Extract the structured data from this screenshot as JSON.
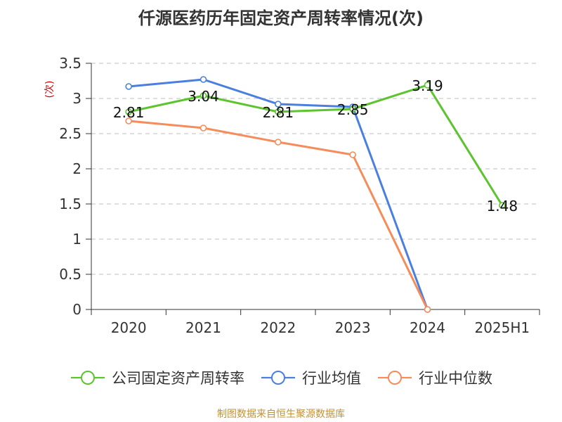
{
  "chart_data": {
    "type": "line",
    "title": "仟源医药历年固定资产周转率情况(次)",
    "ylabel": "(次)",
    "xlabel": "",
    "categories": [
      "2020",
      "2021",
      "2022",
      "2023",
      "2024",
      "2025H1"
    ],
    "ylim": [
      0,
      3.5
    ],
    "yticks": [
      "0",
      "0.5",
      "1",
      "1.5",
      "2",
      "2.5",
      "3",
      "3.5"
    ],
    "grid": true,
    "legend_position": "bottom",
    "series": [
      {
        "name": "公司固定资产周转率",
        "color": "#5cc42e",
        "values": [
          2.81,
          3.04,
          2.81,
          2.85,
          3.19,
          1.48
        ],
        "labels": [
          "2.81",
          "3.04",
          "2.81",
          "2.85",
          "3.19",
          "1.48"
        ]
      },
      {
        "name": "行业均值",
        "color": "#4a7fe0",
        "values": [
          3.17,
          3.27,
          2.92,
          2.88,
          0,
          null
        ]
      },
      {
        "name": "行业中位数",
        "color": "#f58c5a",
        "values": [
          2.68,
          2.58,
          2.38,
          2.2,
          0,
          null
        ]
      }
    ],
    "source": "制图数据来自恒生聚源数据库"
  }
}
